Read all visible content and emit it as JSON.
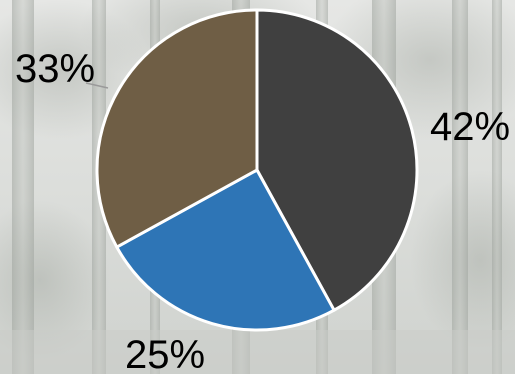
{
  "chart_data": {
    "type": "pie",
    "start_angle_deg": 0,
    "direction": "clockwise",
    "slices": [
      {
        "label": "42%",
        "value": 42,
        "color": "#404040"
      },
      {
        "label": "25%",
        "value": 25,
        "color": "#2e75b6"
      },
      {
        "label": "33%",
        "value": 33,
        "color": "#6f5e45"
      }
    ],
    "background": "forest-photo-grayscale",
    "slice_border_color": "#ffffff",
    "leader_line_color": "#9a9a9a"
  }
}
